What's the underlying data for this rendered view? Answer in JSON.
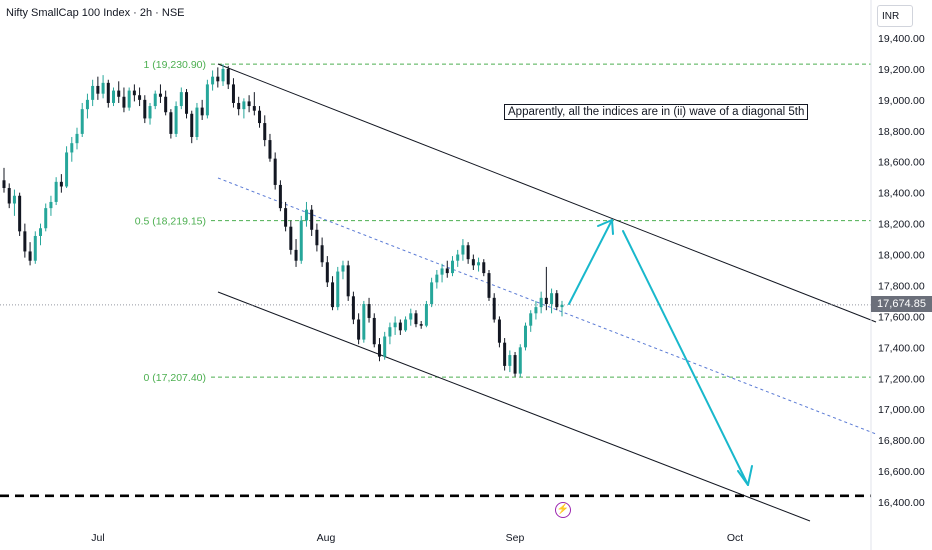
{
  "header": {
    "title": "Nifty SmallCap 100 Index · 2h · NSE"
  },
  "currency": "INR",
  "current_price": "17,674.85",
  "note": "Apparently, all the indices are in (ii) wave of a diagonal 5th",
  "event_icon": "lightning-icon",
  "colors": {
    "up": "#26a69a",
    "down": "#131722",
    "fib": "#4caf50",
    "midline": "#5b7bd5",
    "arrow": "#19b8cc",
    "channel": "#131722"
  },
  "chart_data": {
    "type": "candlestick",
    "title": "Nifty SmallCap 100 Index · 2h · NSE",
    "x_ticks": [
      "Jul",
      "Aug",
      "Sep",
      "Oct"
    ],
    "y_ticks": [
      "16,400.00",
      "16,600.00",
      "16,800.00",
      "17,000.00",
      "17,200.00",
      "17,400.00",
      "17,600.00",
      "17,800.00",
      "18,000.00",
      "18,200.00",
      "18,400.00",
      "18,600.00",
      "18,800.00",
      "19,000.00",
      "19,200.00",
      "19,400.00"
    ],
    "ylim": [
      16250,
      19550
    ],
    "fib_levels": [
      {
        "label": "1 (19,230.90)",
        "value": 19230.9
      },
      {
        "label": "0.5 (18,219.15)",
        "value": 18219.15
      },
      {
        "label": "0 (17,207.40)",
        "value": 17207.4
      }
    ],
    "support_line_value": 16440,
    "last_price": 17674.85,
    "candles": [
      {
        "o": 18480,
        "h": 18560,
        "l": 18400,
        "c": 18430
      },
      {
        "o": 18430,
        "h": 18460,
        "l": 18300,
        "c": 18330
      },
      {
        "o": 18330,
        "h": 18420,
        "l": 18250,
        "c": 18380
      },
      {
        "o": 18380,
        "h": 18400,
        "l": 18120,
        "c": 18150
      },
      {
        "o": 18150,
        "h": 18200,
        "l": 17980,
        "c": 18020
      },
      {
        "o": 18020,
        "h": 18080,
        "l": 17930,
        "c": 17960
      },
      {
        "o": 17960,
        "h": 18150,
        "l": 17940,
        "c": 18120
      },
      {
        "o": 18120,
        "h": 18200,
        "l": 18060,
        "c": 18170
      },
      {
        "o": 18170,
        "h": 18330,
        "l": 18150,
        "c": 18300
      },
      {
        "o": 18300,
        "h": 18380,
        "l": 18250,
        "c": 18340
      },
      {
        "o": 18340,
        "h": 18500,
        "l": 18320,
        "c": 18470
      },
      {
        "o": 18470,
        "h": 18520,
        "l": 18400,
        "c": 18440
      },
      {
        "o": 18440,
        "h": 18700,
        "l": 18430,
        "c": 18660
      },
      {
        "o": 18660,
        "h": 18760,
        "l": 18600,
        "c": 18720
      },
      {
        "o": 18720,
        "h": 18820,
        "l": 18680,
        "c": 18780
      },
      {
        "o": 18780,
        "h": 18980,
        "l": 18760,
        "c": 18940
      },
      {
        "o": 18940,
        "h": 19040,
        "l": 18880,
        "c": 19000
      },
      {
        "o": 19000,
        "h": 19130,
        "l": 18960,
        "c": 19090
      },
      {
        "o": 19090,
        "h": 19150,
        "l": 19000,
        "c": 19040
      },
      {
        "o": 19040,
        "h": 19160,
        "l": 19010,
        "c": 19110
      },
      {
        "o": 19110,
        "h": 19130,
        "l": 18950,
        "c": 18980
      },
      {
        "o": 18980,
        "h": 19080,
        "l": 18960,
        "c": 19060
      },
      {
        "o": 19060,
        "h": 19120,
        "l": 18980,
        "c": 19020
      },
      {
        "o": 19020,
        "h": 19080,
        "l": 18920,
        "c": 18950
      },
      {
        "o": 18950,
        "h": 19080,
        "l": 18930,
        "c": 19060
      },
      {
        "o": 19060,
        "h": 19100,
        "l": 18990,
        "c": 19030
      },
      {
        "o": 19030,
        "h": 19080,
        "l": 18960,
        "c": 19000
      },
      {
        "o": 19000,
        "h": 19030,
        "l": 18850,
        "c": 18880
      },
      {
        "o": 18880,
        "h": 18980,
        "l": 18840,
        "c": 18960
      },
      {
        "o": 18960,
        "h": 19060,
        "l": 18940,
        "c": 19040
      },
      {
        "o": 19040,
        "h": 19100,
        "l": 18980,
        "c": 19020
      },
      {
        "o": 19020,
        "h": 19060,
        "l": 18900,
        "c": 18920
      },
      {
        "o": 18920,
        "h": 18940,
        "l": 18750,
        "c": 18780
      },
      {
        "o": 18780,
        "h": 18990,
        "l": 18760,
        "c": 18960
      },
      {
        "o": 18960,
        "h": 19080,
        "l": 18940,
        "c": 19050
      },
      {
        "o": 19050,
        "h": 19070,
        "l": 18880,
        "c": 18910
      },
      {
        "o": 18910,
        "h": 18930,
        "l": 18720,
        "c": 18760
      },
      {
        "o": 18760,
        "h": 18980,
        "l": 18740,
        "c": 18950
      },
      {
        "o": 18950,
        "h": 19000,
        "l": 18870,
        "c": 18900
      },
      {
        "o": 18900,
        "h": 19130,
        "l": 18880,
        "c": 19100
      },
      {
        "o": 19100,
        "h": 19190,
        "l": 19060,
        "c": 19150
      },
      {
        "o": 19150,
        "h": 19210,
        "l": 19080,
        "c": 19120
      },
      {
        "o": 19120,
        "h": 19231,
        "l": 19090,
        "c": 19200
      },
      {
        "o": 19200,
        "h": 19220,
        "l": 19070,
        "c": 19100
      },
      {
        "o": 19100,
        "h": 19140,
        "l": 18950,
        "c": 18980
      },
      {
        "o": 18980,
        "h": 19020,
        "l": 18900,
        "c": 18940
      },
      {
        "o": 18940,
        "h": 19010,
        "l": 18880,
        "c": 18990
      },
      {
        "o": 18990,
        "h": 19030,
        "l": 18920,
        "c": 18960
      },
      {
        "o": 18960,
        "h": 19050,
        "l": 18900,
        "c": 18930
      },
      {
        "o": 18930,
        "h": 18960,
        "l": 18820,
        "c": 18850
      },
      {
        "o": 18850,
        "h": 18900,
        "l": 18700,
        "c": 18740
      },
      {
        "o": 18740,
        "h": 18780,
        "l": 18600,
        "c": 18620
      },
      {
        "o": 18620,
        "h": 18660,
        "l": 18420,
        "c": 18450
      },
      {
        "o": 18450,
        "h": 18480,
        "l": 18280,
        "c": 18300
      },
      {
        "o": 18300,
        "h": 18340,
        "l": 18150,
        "c": 18180
      },
      {
        "o": 18180,
        "h": 18220,
        "l": 18000,
        "c": 18030
      },
      {
        "o": 18030,
        "h": 18100,
        "l": 17920,
        "c": 17960
      },
      {
        "o": 17960,
        "h": 18250,
        "l": 17940,
        "c": 18220
      },
      {
        "o": 18220,
        "h": 18340,
        "l": 18180,
        "c": 18290
      },
      {
        "o": 18290,
        "h": 18320,
        "l": 18120,
        "c": 18160
      },
      {
        "o": 18160,
        "h": 18200,
        "l": 18020,
        "c": 18060
      },
      {
        "o": 18060,
        "h": 18110,
        "l": 17920,
        "c": 17950
      },
      {
        "o": 17950,
        "h": 17990,
        "l": 17790,
        "c": 17820
      },
      {
        "o": 17820,
        "h": 17860,
        "l": 17640,
        "c": 17660
      },
      {
        "o": 17660,
        "h": 17920,
        "l": 17640,
        "c": 17890
      },
      {
        "o": 17890,
        "h": 17960,
        "l": 17840,
        "c": 17930
      },
      {
        "o": 17930,
        "h": 17960,
        "l": 17700,
        "c": 17730
      },
      {
        "o": 17730,
        "h": 17760,
        "l": 17550,
        "c": 17580
      },
      {
        "o": 17580,
        "h": 17620,
        "l": 17420,
        "c": 17450
      },
      {
        "o": 17450,
        "h": 17700,
        "l": 17430,
        "c": 17680
      },
      {
        "o": 17680,
        "h": 17720,
        "l": 17560,
        "c": 17590
      },
      {
        "o": 17590,
        "h": 17620,
        "l": 17400,
        "c": 17420
      },
      {
        "o": 17420,
        "h": 17460,
        "l": 17310,
        "c": 17340
      },
      {
        "o": 17340,
        "h": 17500,
        "l": 17320,
        "c": 17470
      },
      {
        "o": 17470,
        "h": 17560,
        "l": 17420,
        "c": 17530
      },
      {
        "o": 17530,
        "h": 17600,
        "l": 17480,
        "c": 17560
      },
      {
        "o": 17560,
        "h": 17580,
        "l": 17480,
        "c": 17510
      },
      {
        "o": 17510,
        "h": 17600,
        "l": 17500,
        "c": 17580
      },
      {
        "o": 17580,
        "h": 17650,
        "l": 17540,
        "c": 17620
      },
      {
        "o": 17620,
        "h": 17640,
        "l": 17530,
        "c": 17550
      },
      {
        "o": 17550,
        "h": 17570,
        "l": 17520,
        "c": 17540
      },
      {
        "o": 17540,
        "h": 17700,
        "l": 17530,
        "c": 17680
      },
      {
        "o": 17680,
        "h": 17850,
        "l": 17660,
        "c": 17820
      },
      {
        "o": 17820,
        "h": 17900,
        "l": 17780,
        "c": 17870
      },
      {
        "o": 17870,
        "h": 17940,
        "l": 17820,
        "c": 17910
      },
      {
        "o": 17910,
        "h": 17960,
        "l": 17850,
        "c": 17880
      },
      {
        "o": 17880,
        "h": 17990,
        "l": 17860,
        "c": 17960
      },
      {
        "o": 17960,
        "h": 18030,
        "l": 17920,
        "c": 18000
      },
      {
        "o": 18000,
        "h": 18100,
        "l": 17960,
        "c": 18060
      },
      {
        "o": 18060,
        "h": 18080,
        "l": 17940,
        "c": 17970
      },
      {
        "o": 17970,
        "h": 18000,
        "l": 17900,
        "c": 17930
      },
      {
        "o": 17930,
        "h": 17980,
        "l": 17890,
        "c": 17950
      },
      {
        "o": 17950,
        "h": 17970,
        "l": 17860,
        "c": 17880
      },
      {
        "o": 17880,
        "h": 17900,
        "l": 17700,
        "c": 17720
      },
      {
        "o": 17720,
        "h": 17750,
        "l": 17560,
        "c": 17580
      },
      {
        "o": 17580,
        "h": 17600,
        "l": 17400,
        "c": 17430
      },
      {
        "o": 17430,
        "h": 17460,
        "l": 17250,
        "c": 17280
      },
      {
        "o": 17280,
        "h": 17380,
        "l": 17240,
        "c": 17350
      },
      {
        "o": 17350,
        "h": 17370,
        "l": 17210,
        "c": 17230
      },
      {
        "o": 17230,
        "h": 17420,
        "l": 17207,
        "c": 17400
      },
      {
        "o": 17400,
        "h": 17560,
        "l": 17380,
        "c": 17540
      },
      {
        "o": 17540,
        "h": 17640,
        "l": 17500,
        "c": 17620
      },
      {
        "o": 17620,
        "h": 17700,
        "l": 17580,
        "c": 17660
      },
      {
        "o": 17660,
        "h": 17760,
        "l": 17620,
        "c": 17720
      },
      {
        "o": 17720,
        "h": 17920,
        "l": 17640,
        "c": 17680
      },
      {
        "o": 17680,
        "h": 17780,
        "l": 17620,
        "c": 17750
      },
      {
        "o": 17750,
        "h": 17770,
        "l": 17640,
        "c": 17660
      },
      {
        "o": 17660,
        "h": 17700,
        "l": 17600,
        "c": 17675
      }
    ]
  }
}
